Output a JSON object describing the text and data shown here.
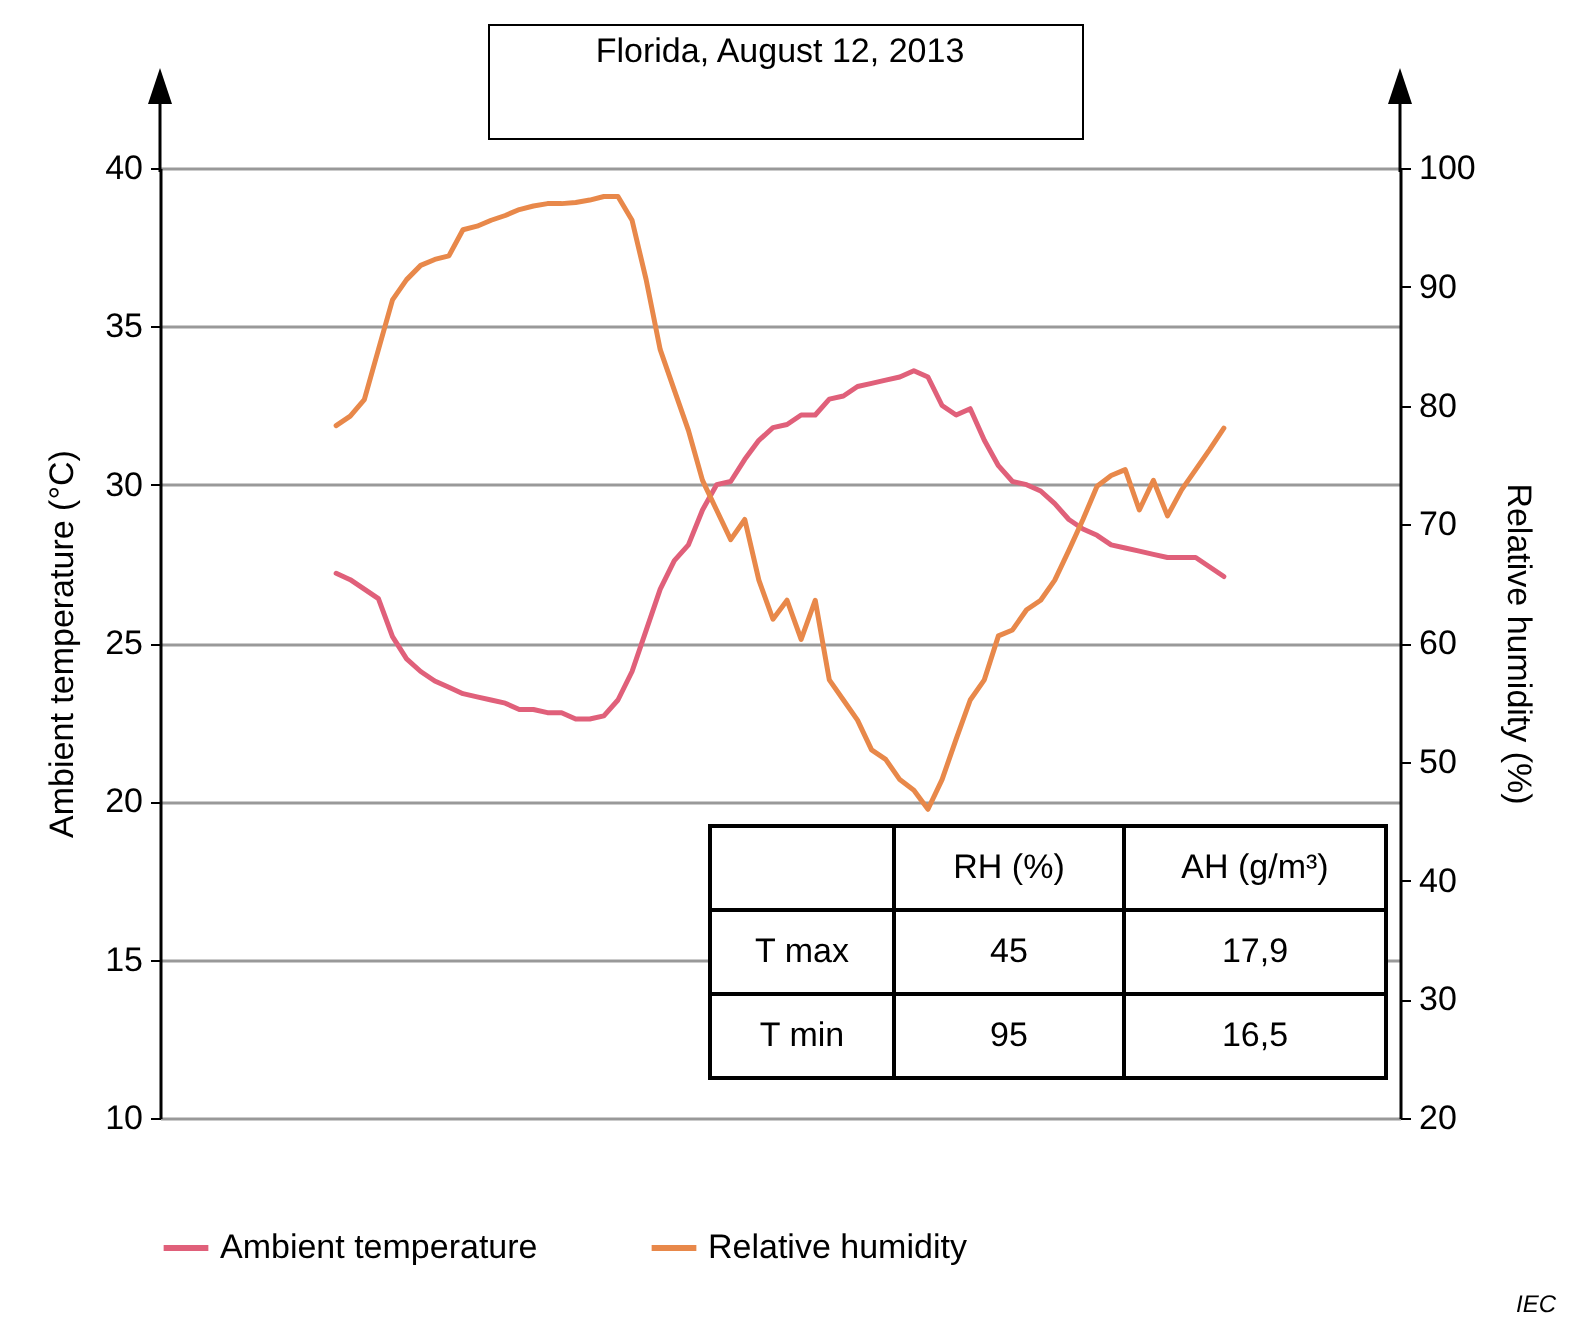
{
  "chart_data": {
    "type": "line",
    "title": "Florida, August 12, 2013",
    "categories": [
      null,
      null,
      null,
      null,
      null,
      null,
      null,
      null,
      null,
      null,
      null,
      null,
      null,
      null,
      null,
      null,
      null,
      null,
      null,
      null,
      null,
      null,
      null,
      null,
      null,
      null,
      null,
      null,
      null,
      null,
      null,
      null,
      null,
      null,
      null,
      null,
      null,
      null,
      null,
      null,
      null,
      null,
      null,
      null,
      null,
      null,
      null,
      null,
      null,
      null,
      null,
      null,
      null,
      null,
      null,
      null,
      null,
      null,
      null,
      null,
      null,
      null,
      null,
      null,
      null,
      null,
      null,
      null,
      null,
      null,
      null,
      null,
      null,
      null,
      null,
      null,
      null,
      null,
      null,
      null,
      null,
      null,
      null,
      null,
      null,
      null,
      null,
      null
    ],
    "series": [
      {
        "name": "Ambient temperature",
        "color": "#e0607a",
        "values": [
          null,
          null,
          null,
          null,
          null,
          null,
          null,
          null,
          null,
          null,
          null,
          null,
          27.2,
          27.0,
          26.7,
          26.4,
          25.2,
          24.5,
          24.1,
          23.8,
          23.6,
          23.4,
          23.3,
          23.2,
          23.1,
          22.9,
          22.9,
          22.8,
          22.8,
          22.6,
          22.6,
          22.7,
          23.2,
          24.1,
          25.4,
          26.7,
          27.6,
          28.1,
          29.2,
          30.0,
          30.1,
          30.8,
          31.4,
          31.8,
          31.9,
          32.2,
          32.2,
          32.7,
          32.8,
          33.1,
          33.2,
          33.3,
          33.4,
          33.6,
          33.4,
          32.5,
          32.2,
          32.4,
          31.4,
          30.6,
          30.1,
          30.0,
          29.8,
          29.4,
          28.9,
          28.6,
          28.4,
          28.1,
          28.0,
          27.9,
          27.8,
          27.7,
          27.7,
          27.7,
          27.4,
          27.1,
          null,
          null,
          null,
          null,
          null,
          null,
          null,
          null,
          null,
          null,
          null,
          null
        ]
      },
      {
        "name": "Relative humidity",
        "color": "#e8884a",
        "axis": "y2",
        "values": [
          null,
          null,
          null,
          null,
          null,
          null,
          null,
          null,
          null,
          null,
          null,
          null,
          78.3,
          79.1,
          80.5,
          84.7,
          88.9,
          90.6,
          91.8,
          92.3,
          92.6,
          94.8,
          95.1,
          95.6,
          96.0,
          96.5,
          96.8,
          97.0,
          97.0,
          97.1,
          97.3,
          97.6,
          97.6,
          95.6,
          90.6,
          84.7,
          81.3,
          77.9,
          73.7,
          71.2,
          68.7,
          70.4,
          65.3,
          62.0,
          63.6,
          60.3,
          63.6,
          56.9,
          55.2,
          53.5,
          51.0,
          50.2,
          48.5,
          47.6,
          46.0,
          48.5,
          51.9,
          55.2,
          56.9,
          60.6,
          61.1,
          62.8,
          63.6,
          65.3,
          67.8,
          70.4,
          73.2,
          74.1,
          74.6,
          71.2,
          73.7,
          70.7,
          72.9,
          74.6,
          76.3,
          78.1,
          null,
          null,
          null,
          null,
          null,
          null,
          null,
          null,
          null,
          null,
          null,
          null
        ]
      }
    ],
    "ylabel": "Ambient temperature (°C)",
    "y2label": "Relative humidity (%)",
    "ylim": [
      10,
      40
    ],
    "yticks": [
      10,
      15,
      20,
      25,
      30,
      35,
      40
    ],
    "y2lim": [
      20,
      100
    ],
    "y2ticks": [
      20,
      30,
      40,
      50,
      60,
      70,
      80,
      90,
      100
    ],
    "grid": "y",
    "legend": "bottom",
    "tick_labels": "y",
    "annotations": [
      "RH (%)",
      "AH (g/m³)",
      "T max",
      "45",
      "17,9",
      "T min",
      "95",
      "16,5",
      "IEC"
    ]
  }
}
